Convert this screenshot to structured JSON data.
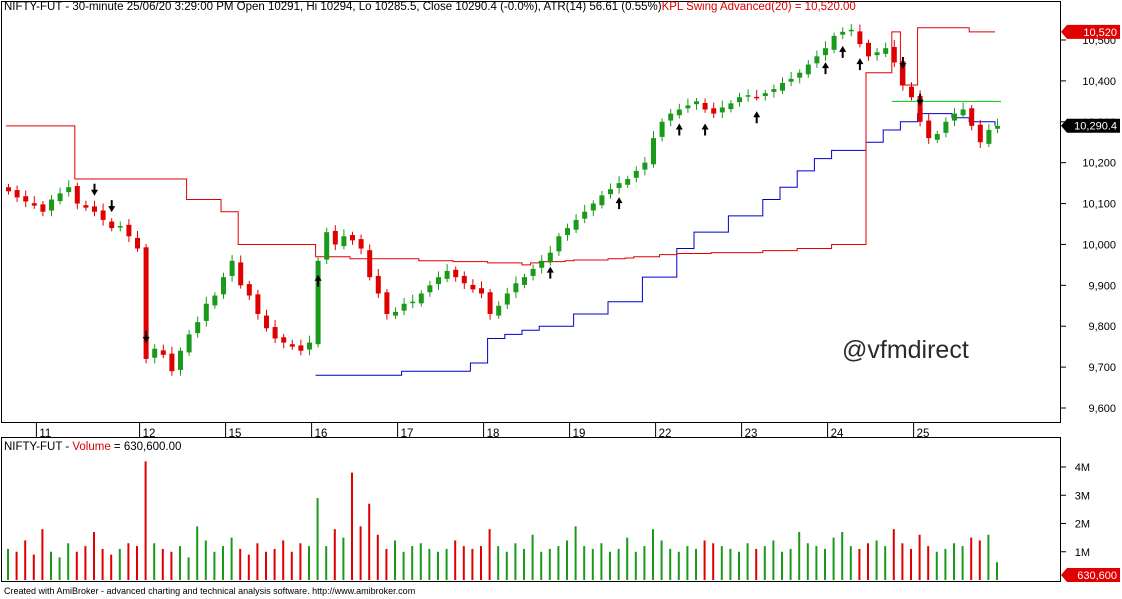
{
  "header": {
    "price_title": "NIFTY-FUT - 30-minute 25/06/20 3:29:00 PM Open 10291, Hi 10294, Lo 10285.5, Close 10290.4 (-0.0%), ATR(14) 56.61  (0.55%)",
    "indicator_title": "KPL Swing Advanced(20) = 10,520.00",
    "volume_title_prefix": "NIFTY-FUT - ",
    "volume_title_label": "Volume",
    "volume_title_value": " = 630,600.00"
  },
  "watermark": "@vfmdirect",
  "footer": "Created with AmiBroker - advanced charting and technical analysis software. http://www.amibroker.com",
  "colors": {
    "up": "#1a9a1a",
    "down": "#e00000",
    "kpl_resistance": "#e00000",
    "kpl_support": "#0000cc",
    "level_line": "#00cc00",
    "arrows": "#000000",
    "grid": "#000000"
  },
  "chart_data": [
    {
      "type": "candlestick",
      "name": "price",
      "y_ticks": [
        9600,
        9700,
        9800,
        9900,
        10000,
        10100,
        10200,
        10300,
        10400,
        10500
      ],
      "y_tick_labels": [
        "9,600",
        "9,700",
        "9,800",
        "9,900",
        "10,000",
        "10,100",
        "10,200",
        "10,300",
        "10,400",
        "10,500"
      ],
      "ylim": [
        9560,
        10560
      ],
      "x_tick_labels": [
        "11",
        "12",
        "15",
        "16",
        "17",
        "18",
        "19",
        "22",
        "23",
        "24",
        "25"
      ],
      "x_tick_bar_index": [
        4,
        16,
        26,
        36,
        46,
        56,
        66,
        76,
        86,
        96,
        106
      ],
      "bars_total": 116,
      "closes": [
        10130,
        10115,
        10105,
        10095,
        10080,
        10110,
        10125,
        10140,
        10100,
        10090,
        10080,
        10060,
        10040,
        10045,
        10020,
        9990,
        9720,
        9745,
        9730,
        9690,
        9740,
        9780,
        9810,
        9855,
        9875,
        9920,
        9960,
        9900,
        9875,
        9830,
        9795,
        9770,
        9760,
        9750,
        9740,
        9760,
        9960,
        10030,
        10000,
        10020,
        10010,
        9990,
        9920,
        9880,
        9830,
        9835,
        9855,
        9860,
        9880,
        9900,
        9920,
        9935,
        9920,
        9905,
        9890,
        9880,
        9830,
        9850,
        9880,
        9905,
        9920,
        9940,
        9960,
        9980,
        10020,
        10040,
        10060,
        10080,
        10100,
        10120,
        10135,
        10150,
        10160,
        10180,
        10200,
        10260,
        10300,
        10320,
        10330,
        10340,
        10350,
        10330,
        10320,
        10335,
        10345,
        10360,
        10365,
        10360,
        10370,
        10380,
        10395,
        10405,
        10420,
        10440,
        10460,
        10480,
        10510,
        10520,
        10525,
        10490,
        10460,
        10470,
        10480,
        10445,
        10390,
        10360,
        10300,
        10260,
        10270,
        10300,
        10320,
        10330,
        10290,
        10250,
        10280,
        10290
      ],
      "resistance_line": {
        "name": "KPL Swing Advanced(20)",
        "value_tag": "10,520",
        "points": [
          [
            0,
            10290
          ],
          [
            6,
            10290
          ],
          [
            8,
            10160
          ],
          [
            19,
            10160
          ],
          [
            21,
            10110
          ],
          [
            25,
            10080
          ],
          [
            27,
            10000
          ],
          [
            36,
            10000
          ],
          [
            36,
            9970
          ],
          [
            40,
            9965
          ],
          [
            48,
            9960
          ],
          [
            52,
            9958
          ],
          [
            56,
            9955
          ],
          [
            60,
            9950
          ],
          [
            61,
            9955
          ],
          [
            62,
            9958
          ],
          [
            65,
            9960
          ],
          [
            66,
            9962
          ],
          [
            70,
            9965
          ],
          [
            72,
            9967
          ],
          [
            73,
            9970
          ],
          [
            76,
            9975
          ],
          [
            78,
            9978
          ],
          [
            82,
            9980
          ],
          [
            88,
            9985
          ],
          [
            92,
            9990
          ],
          [
            96,
            10000
          ],
          [
            100,
            10420
          ],
          [
            103,
            10520
          ],
          [
            104,
            10520
          ],
          [
            104,
            10390
          ],
          [
            106,
            10390
          ],
          [
            106,
            10530
          ],
          [
            112,
            10530
          ],
          [
            112,
            10520
          ],
          [
            115,
            10520
          ]
        ]
      },
      "support_line": {
        "points": [
          [
            36,
            9680
          ],
          [
            45,
            9680
          ],
          [
            46,
            9690
          ],
          [
            54,
            9710
          ],
          [
            56,
            9770
          ],
          [
            58,
            9780
          ],
          [
            60,
            9790
          ],
          [
            62,
            9800
          ],
          [
            66,
            9830
          ],
          [
            70,
            9860
          ],
          [
            74,
            9920
          ],
          [
            78,
            9990
          ],
          [
            80,
            10030
          ],
          [
            84,
            10070
          ],
          [
            88,
            10110
          ],
          [
            90,
            10140
          ],
          [
            92,
            10180
          ],
          [
            94,
            10210
          ],
          [
            96,
            10230
          ],
          [
            100,
            10250
          ],
          [
            102,
            10280
          ],
          [
            104,
            10300
          ],
          [
            106,
            10320
          ],
          [
            108,
            10320
          ],
          [
            110,
            10310
          ],
          [
            112,
            10300
          ],
          [
            115,
            10290
          ]
        ]
      },
      "level_line": {
        "value": 10350,
        "from_bar": 103,
        "to_bar": 115
      },
      "last_close_tag": "10,290.4",
      "buy_arrow_bars": [
        36,
        63,
        71,
        78,
        81,
        87,
        95,
        97,
        99
      ],
      "sell_arrow_bars": [
        10,
        12,
        16,
        104,
        106
      ]
    },
    {
      "type": "bar",
      "name": "Volume",
      "y_ticks": [
        1000000,
        2000000,
        3000000,
        4000000
      ],
      "y_tick_labels": [
        "1M",
        "2M",
        "3M",
        "4M"
      ],
      "ylim": [
        0,
        4800000
      ],
      "last_value_tag": "630,600",
      "volumes_m": [
        1.1,
        1.0,
        1.4,
        0.9,
        1.8,
        1.0,
        0.8,
        1.3,
        1.0,
        1.2,
        1.7,
        1.1,
        0.9,
        1.1,
        1.3,
        1.2,
        4.2,
        1.3,
        1.1,
        1.0,
        1.2,
        0.8,
        1.9,
        1.4,
        1.0,
        1.2,
        1.5,
        1.1,
        0.9,
        1.3,
        1.0,
        1.1,
        1.4,
        1.0,
        1.3,
        1.2,
        2.9,
        1.2,
        1.8,
        1.5,
        3.8,
        1.9,
        2.7,
        1.6,
        1.1,
        1.4,
        1.0,
        1.2,
        1.3,
        1.1,
        1.0,
        1.1,
        1.4,
        1.2,
        1.1,
        1.2,
        1.8,
        1.2,
        1.0,
        1.3,
        1.1,
        1.6,
        1.0,
        1.1,
        1.2,
        1.4,
        1.9,
        1.2,
        1.1,
        1.3,
        1.0,
        1.1,
        1.5,
        1.0,
        1.2,
        1.8,
        1.4,
        1.1,
        1.0,
        1.2,
        1.1,
        1.4,
        1.3,
        1.2,
        1.1,
        1.0,
        1.3,
        1.1,
        1.2,
        1.4,
        1.0,
        1.1,
        1.7,
        1.3,
        1.2,
        1.1,
        1.5,
        1.7,
        1.2,
        1.1,
        1.3,
        1.4,
        1.2,
        1.8,
        1.3,
        1.1,
        1.6,
        1.2,
        1.0,
        1.1,
        1.3,
        1.2,
        1.5,
        1.4,
        1.6,
        0.63
      ]
    }
  ]
}
